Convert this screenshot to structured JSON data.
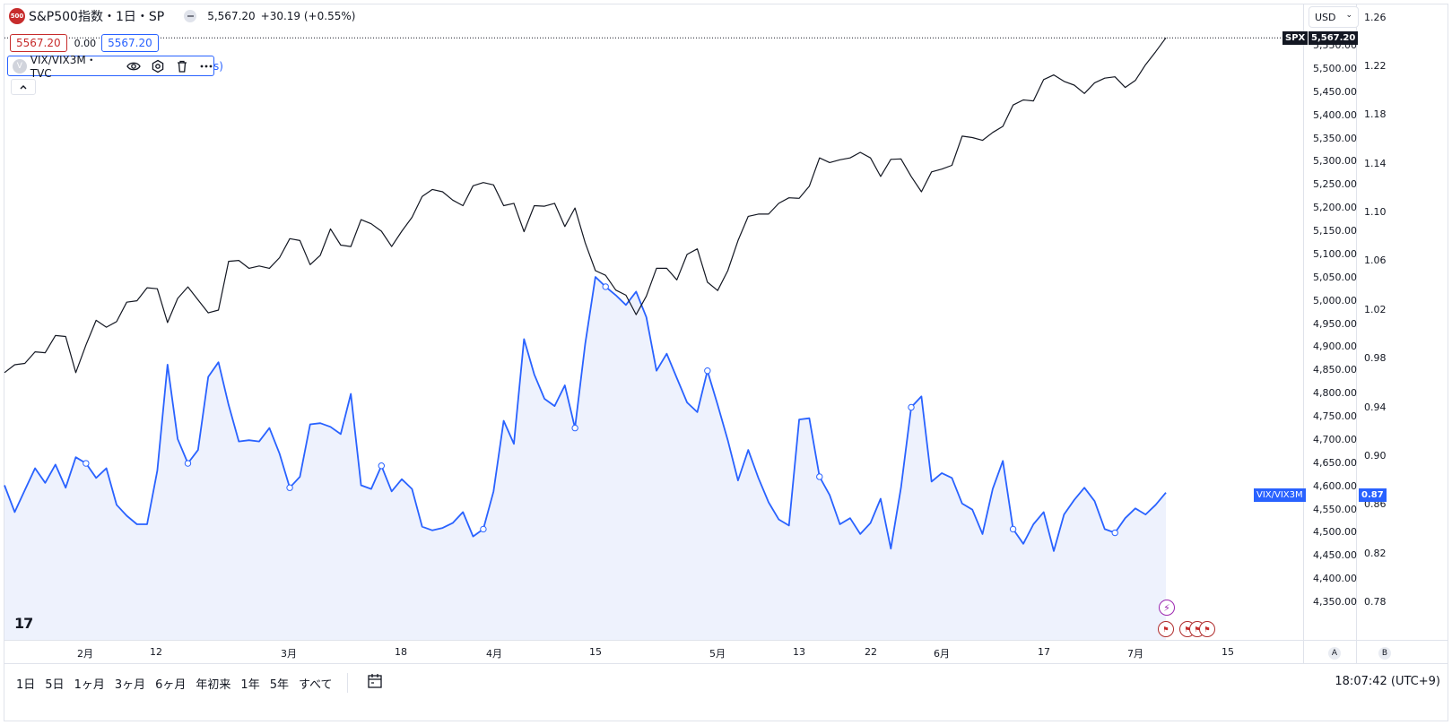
{
  "header": {
    "logo_text": "500",
    "title": "S&P500指数・1日・SP",
    "price": "5,567.20",
    "change": "+30.19 (+0.55%)"
  },
  "legend": {
    "value_left": "5567.20",
    "zero": "0.00",
    "value_right": "5567.20",
    "study_icon": "V",
    "study_name": "VIX/VIX3M・TVC",
    "study_tail": "s)",
    "collapse_icon": "chevron-up"
  },
  "currency": {
    "label": "USD"
  },
  "right_scale": {
    "ticks": [
      "5,550.00",
      "5,500.00",
      "5,450.00",
      "5,400.00",
      "5,350.00",
      "5,300.00",
      "5,250.00",
      "5,200.00",
      "5,150.00",
      "5,100.00",
      "5,050.00",
      "5,000.00",
      "4,950.00",
      "4,900.00",
      "4,850.00",
      "4,800.00",
      "4,750.00",
      "4,700.00",
      "4,650.00",
      "4,600.00",
      "4,550.00",
      "4,500.00",
      "4,450.00",
      "4,400.00",
      "4,350.00"
    ],
    "spx_tag": "SPX",
    "spx_value": "5,567.20",
    "vix_tag": "VIX/VIX3M",
    "vix_value": "0.87",
    "ratio_ticks": [
      "1.26",
      "1.22",
      "1.18",
      "1.14",
      "1.10",
      "1.06",
      "1.02",
      "0.98",
      "0.94",
      "0.90",
      "0.86",
      "0.82",
      "0.78"
    ]
  },
  "x_axis": {
    "labels": [
      "2月",
      "12",
      "3月",
      "18",
      "4月",
      "15",
      "5月",
      "13",
      "22",
      "6月",
      "17",
      "7月",
      "15"
    ],
    "a_label": "A",
    "b_label": "B"
  },
  "bottom_bar": {
    "ranges": [
      "1日",
      "5日",
      "1ヶ月",
      "3ヶ月",
      "6ヶ月",
      "年初来",
      "1年",
      "5年",
      "すべて"
    ],
    "clock": "18:07:42 (UTC+9)"
  },
  "colors": {
    "spx": "#131722",
    "vix": "#2962ff",
    "vix_fill": "#eef2fd",
    "red": "#c72c2c"
  },
  "chart_data": [
    {
      "type": "line",
      "name": "SPX",
      "ylim": [
        4330,
        5600
      ],
      "values": [
        4845,
        4862,
        4865,
        4890,
        4888,
        4925,
        4923,
        4845,
        4905,
        4958,
        4943,
        4955,
        4997,
        5000,
        5028,
        5026,
        4953,
        5005,
        5030,
        5002,
        4974,
        4980,
        5085,
        5087,
        5070,
        5075,
        5070,
        5093,
        5134,
        5130,
        5078,
        5098,
        5155,
        5120,
        5117,
        5175,
        5166,
        5150,
        5117,
        5150,
        5180,
        5225,
        5240,
        5235,
        5217,
        5205,
        5248,
        5255,
        5250,
        5205,
        5210,
        5149,
        5205,
        5204,
        5210,
        5160,
        5200,
        5125,
        5065,
        5055,
        5023,
        5012,
        4970,
        5010,
        5070,
        5070,
        5045,
        5100,
        5112,
        5040,
        5022,
        5065,
        5130,
        5182,
        5187,
        5187,
        5210,
        5222,
        5221,
        5247,
        5308,
        5298,
        5304,
        5308,
        5320,
        5308,
        5268,
        5305,
        5306,
        5268,
        5235,
        5278,
        5284,
        5292,
        5355,
        5352,
        5346,
        5363,
        5376,
        5422,
        5433,
        5431,
        5477,
        5487,
        5473,
        5465,
        5447,
        5470,
        5480,
        5483,
        5460,
        5475,
        5509,
        5537,
        5567
      ]
    },
    {
      "type": "area",
      "name": "VIX/VIX3M",
      "ylim": [
        0.749,
        1.271
      ],
      "values": [
        0.876,
        0.854,
        0.872,
        0.89,
        0.878,
        0.893,
        0.874,
        0.899,
        0.894,
        0.882,
        0.89,
        0.86,
        0.851,
        0.844,
        0.844,
        0.888,
        0.975,
        0.914,
        0.894,
        0.905,
        0.965,
        0.977,
        0.942,
        0.912,
        0.913,
        0.912,
        0.923,
        0.902,
        0.874,
        0.883,
        0.926,
        0.927,
        0.924,
        0.918,
        0.951,
        0.876,
        0.873,
        0.892,
        0.871,
        0.881,
        0.873,
        0.842,
        0.839,
        0.841,
        0.845,
        0.854,
        0.834,
        0.84,
        0.871,
        0.929,
        0.91,
        0.996,
        0.967,
        0.947,
        0.941,
        0.958,
        0.923,
        0.992,
        1.047,
        1.039,
        1.032,
        1.024,
        1.035,
        1.014,
        0.97,
        0.984,
        0.964,
        0.944,
        0.936,
        0.97,
        0.942,
        0.913,
        0.88,
        0.905,
        0.882,
        0.862,
        0.848,
        0.843,
        0.93,
        0.931,
        0.883,
        0.868,
        0.844,
        0.849,
        0.836,
        0.845,
        0.865,
        0.824,
        0.874,
        0.94,
        0.949,
        0.879,
        0.886,
        0.882,
        0.861,
        0.856,
        0.836,
        0.873,
        0.896,
        0.84,
        0.828,
        0.844,
        0.854,
        0.822,
        0.852,
        0.864,
        0.874,
        0.863,
        0.84,
        0.837,
        0.849,
        0.857,
        0.852,
        0.86,
        0.87
      ]
    }
  ]
}
